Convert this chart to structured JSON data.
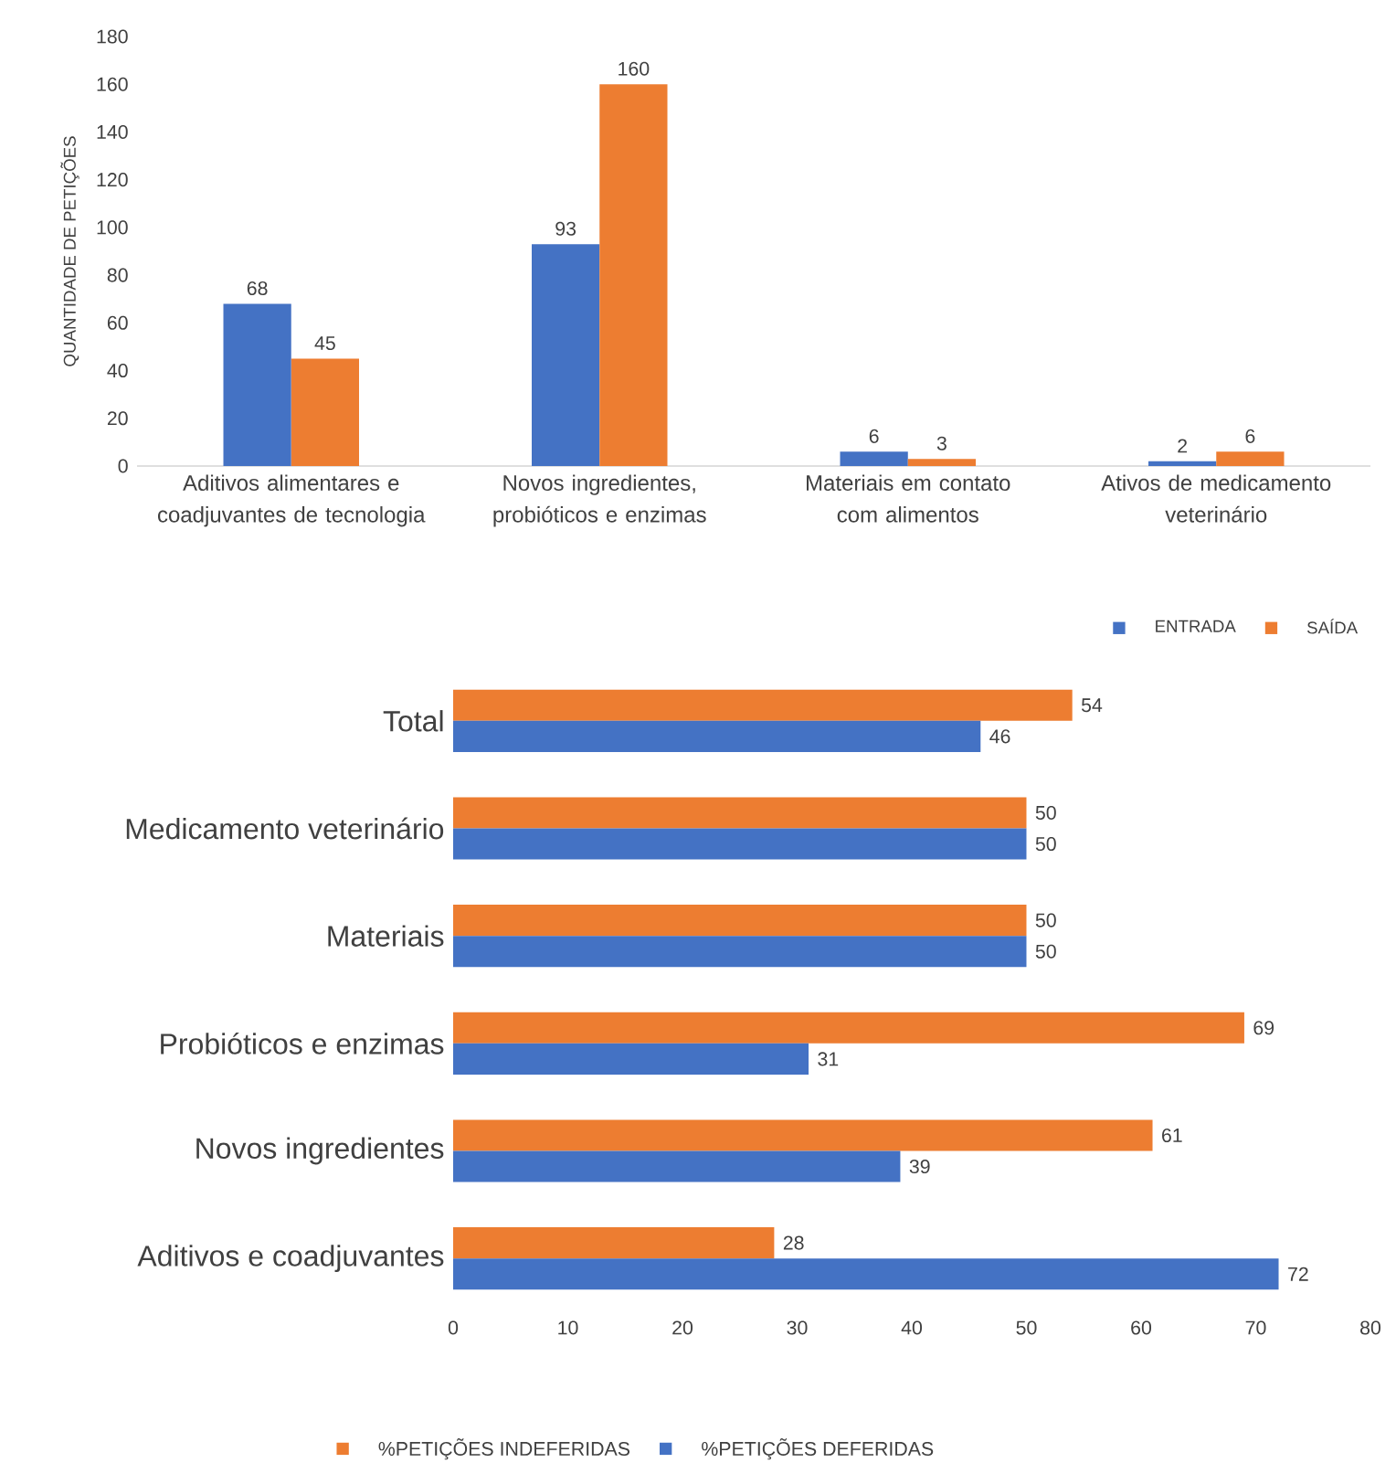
{
  "chart_data": [
    {
      "type": "bar",
      "ylabel": "QUANTIDADE DE PETIÇÕES",
      "categories": [
        "Aditivos alimentares e coadjuvantes de tecnologia",
        "Novos ingredientes, probióticos e enzimas",
        "Materiais em contato com alimentos",
        "Ativos de medicamento veterinário"
      ],
      "series": [
        {
          "name": "ENTRADA",
          "color": "#4472c4",
          "values": [
            68,
            93,
            6,
            2
          ]
        },
        {
          "name": "SAÍDA",
          "color": "#ed7d31",
          "values": [
            45,
            160,
            3,
            6
          ]
        }
      ],
      "ylim": [
        0,
        180
      ],
      "yticks": [
        0,
        20,
        40,
        60,
        80,
        100,
        120,
        140,
        160,
        180
      ],
      "data_labels": true,
      "legend": "bottom right"
    },
    {
      "type": "bar",
      "orientation": "horizontal",
      "categories": [
        "Total",
        "Medicamento veterinário",
        "Materiais",
        "Probióticos e enzimas",
        "Novos ingredientes",
        "Aditivos e coadjuvantes"
      ],
      "series": [
        {
          "name": "%PETIÇÕES INDEFERIDAS",
          "color": "#ed7d31",
          "values": [
            54,
            50,
            50,
            69,
            61,
            28
          ]
        },
        {
          "name": "%PETIÇÕES DEFERIDAS",
          "color": "#4472c4",
          "values": [
            46,
            50,
            50,
            31,
            39,
            72
          ]
        }
      ],
      "xlim": [
        0,
        80
      ],
      "xticks": [
        0,
        10,
        20,
        30,
        40,
        50,
        60,
        70,
        80
      ],
      "data_labels": true,
      "legend": "bottom"
    }
  ]
}
